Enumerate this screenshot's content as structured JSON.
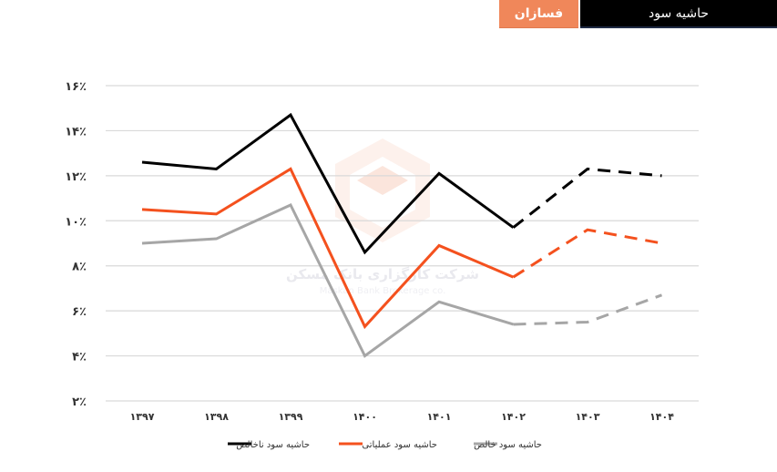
{
  "header": {
    "title": "حاشیه سود",
    "company_tab": "فسازان",
    "colors": {
      "company_tab_bg": "#F0875A",
      "title_bg": "#000000"
    }
  },
  "watermark": {
    "text_fa": "شرکت کارگزاری بانک مسکن",
    "text_en": "Maskan Bank Brokerage co."
  },
  "chart_data": {
    "type": "line",
    "title": "حاشیه سود",
    "xlabel": "",
    "ylabel": "",
    "categories": [
      "۱۳۹۷",
      "۱۳۹۸",
      "۱۳۹۹",
      "۱۴۰۰",
      "۱۴۰۱",
      "۱۴۰۲",
      "۱۴۰۳",
      "۱۴۰۴"
    ],
    "categories_latin": [
      "1397",
      "1398",
      "1399",
      "1400",
      "1401",
      "1402",
      "1403",
      "1404"
    ],
    "y_ticks": [
      "۲٪",
      "۴٪",
      "۶٪",
      "۸٪",
      "۱۰٪",
      "۱۲٪",
      "۱۴٪",
      "۱۶٪"
    ],
    "y_tick_values": [
      2,
      4,
      6,
      8,
      10,
      12,
      14,
      16
    ],
    "ylim": [
      2,
      16
    ],
    "grid": true,
    "legend_position": "bottom",
    "forecast_from_index": 5,
    "forecast_note": "segments from 1402 onward are dashed (forecast)",
    "series": [
      {
        "name": "حاشیه سود ناخالص",
        "color": "#000000",
        "values": [
          12.6,
          12.3,
          14.7,
          8.6,
          12.1,
          9.7,
          12.3,
          12.0
        ]
      },
      {
        "name": "حاشیه سود عملیاتی",
        "color": "#F4511E",
        "values": [
          10.5,
          10.3,
          12.3,
          5.3,
          8.9,
          7.5,
          9.6,
          9.0
        ]
      },
      {
        "name": "حاشیه سود خالص",
        "color": "#A6A6A6",
        "values": [
          9.0,
          9.2,
          10.7,
          4.0,
          6.4,
          5.4,
          5.5,
          6.7
        ]
      }
    ]
  }
}
